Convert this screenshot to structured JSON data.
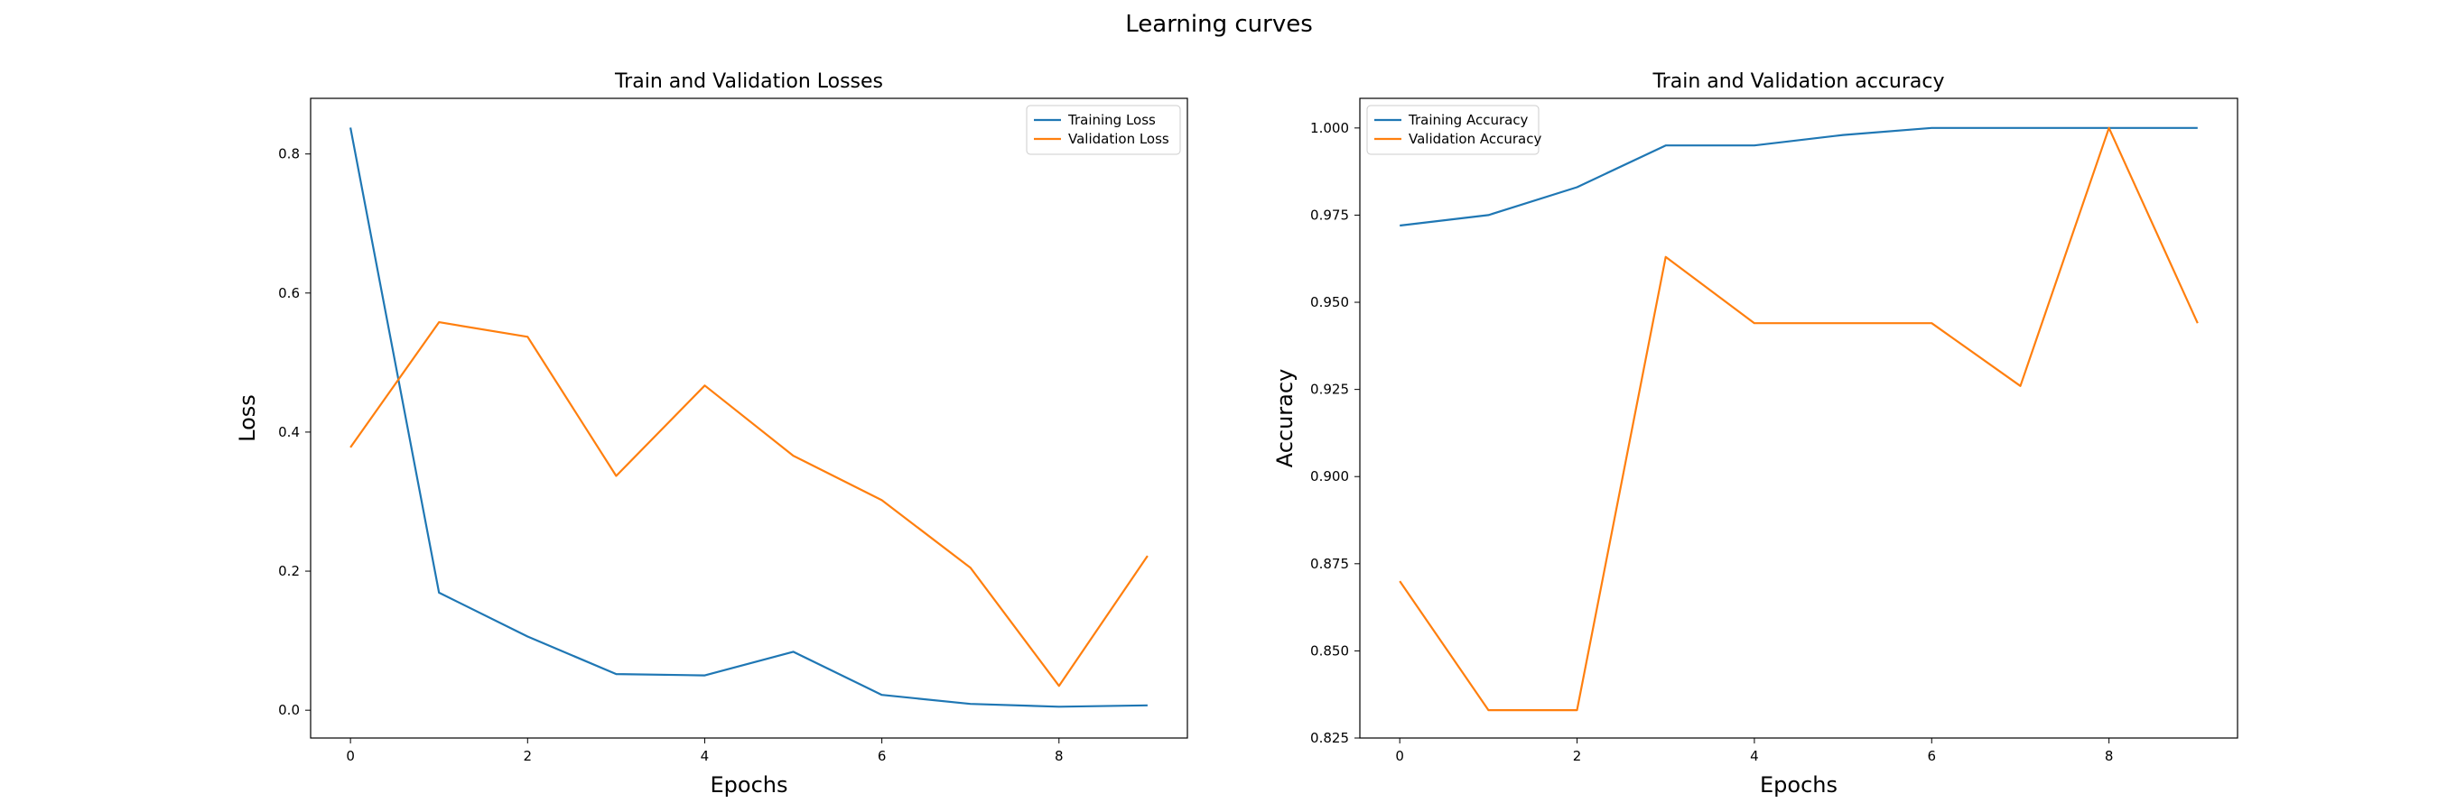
{
  "figure_title": "Learning curves",
  "colors": {
    "training": "#1f77b4",
    "validation": "#ff7f0e"
  },
  "chart_data": [
    {
      "type": "line",
      "title": "Train and Validation Losses",
      "xlabel": "Epochs",
      "ylabel": "Loss",
      "x": [
        0,
        1,
        2,
        3,
        4,
        5,
        6,
        7,
        8,
        9
      ],
      "xlim": [
        -0.45,
        9.45
      ],
      "ylim": [
        -0.04,
        0.88
      ],
      "xticks": [
        0,
        2,
        4,
        6,
        8
      ],
      "yticks": [
        0.0,
        0.2,
        0.4,
        0.6,
        0.8
      ],
      "ytick_labels": [
        "0.0",
        "0.2",
        "0.4",
        "0.6",
        "0.8"
      ],
      "legend_position": "upper right",
      "series": [
        {
          "name": "Training Loss",
          "values": [
            0.838,
            0.169,
            0.106,
            0.052,
            0.05,
            0.084,
            0.022,
            0.009,
            0.005,
            0.007
          ]
        },
        {
          "name": "Validation Loss",
          "values": [
            0.378,
            0.558,
            0.537,
            0.337,
            0.467,
            0.366,
            0.302,
            0.205,
            0.035,
            0.222
          ]
        }
      ]
    },
    {
      "type": "line",
      "title": "Train and Validation accuracy",
      "xlabel": "Epochs",
      "ylabel": "Accuracy",
      "x": [
        0,
        1,
        2,
        3,
        4,
        5,
        6,
        7,
        8,
        9
      ],
      "xlim": [
        -0.45,
        9.45
      ],
      "ylim": [
        0.825,
        1.0085
      ],
      "xticks": [
        0,
        2,
        4,
        6,
        8
      ],
      "yticks": [
        0.825,
        0.85,
        0.875,
        0.9,
        0.925,
        0.95,
        0.975,
        1.0
      ],
      "ytick_labels": [
        "0.825",
        "0.850",
        "0.875",
        "0.900",
        "0.925",
        "0.950",
        "0.975",
        "1.000"
      ],
      "legend_position": "upper left",
      "series": [
        {
          "name": "Training Accuracy",
          "values": [
            0.972,
            0.975,
            0.983,
            0.995,
            0.995,
            0.998,
            1.0,
            1.0,
            1.0,
            1.0
          ]
        },
        {
          "name": "Validation Accuracy",
          "values": [
            0.87,
            0.833,
            0.833,
            0.963,
            0.944,
            0.944,
            0.944,
            0.926,
            1.0,
            0.944
          ]
        }
      ]
    }
  ]
}
